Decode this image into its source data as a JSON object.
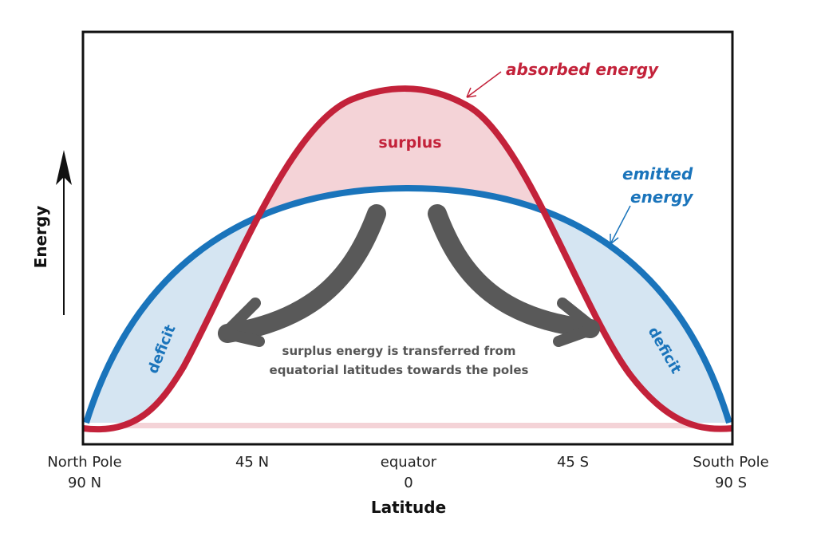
{
  "y_axis_label": "Energy",
  "x_axis_label": "Latitude",
  "x_labels": [
    {
      "lines": [
        "North Pole",
        "90 N"
      ]
    },
    {
      "lines": [
        "45 N"
      ]
    },
    {
      "lines": [
        "equator",
        "0"
      ]
    },
    {
      "lines": [
        "45 S"
      ]
    },
    {
      "lines": [
        "South Pole",
        "90 S"
      ]
    }
  ],
  "curves": {
    "absorbed": {
      "label": "absorbed energy"
    },
    "emitted": {
      "label_lines": [
        "emitted",
        "energy"
      ]
    }
  },
  "regions": {
    "surplus": "surplus",
    "deficit_left": "deficit",
    "deficit_right": "deficit"
  },
  "annotation": {
    "lines": [
      "surplus energy is transferred from",
      "equatorial latitudes towards the poles"
    ]
  }
}
